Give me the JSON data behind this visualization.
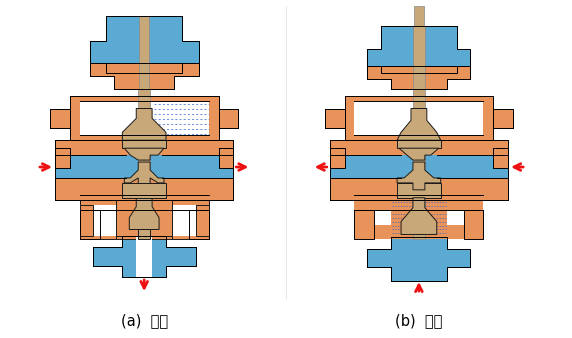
{
  "background_color": "#ffffff",
  "orange": "#E8935A",
  "blue": "#5BAAD4",
  "light_tan": "#D4B896",
  "tan": "#C8A878",
  "outline": "#1a1a1a",
  "red": "#EE1111",
  "blue_dot": "#3366CC",
  "label_a": "(a)  分流",
  "label_b": "(b)  合流",
  "lfs": 10.5,
  "fig_w": 5.72,
  "fig_h": 3.38,
  "dpi": 100
}
